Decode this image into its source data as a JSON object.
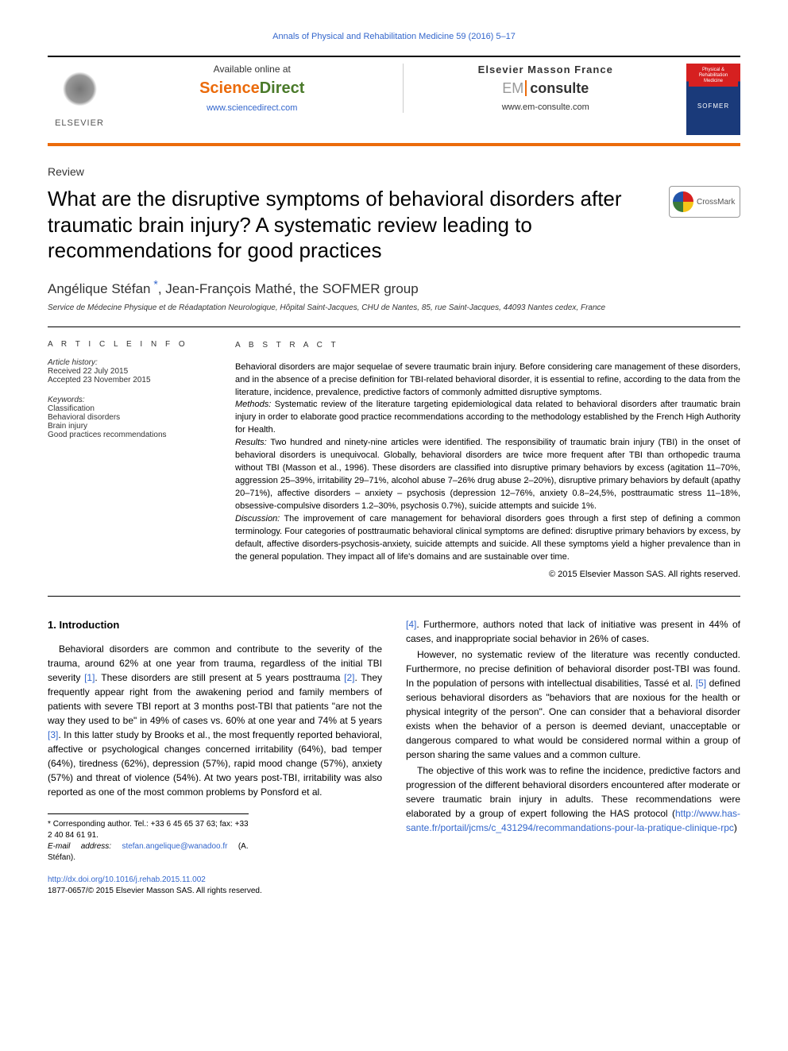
{
  "journal_ref": "Annals of Physical and Rehabilitation Medicine 59 (2016) 5–17",
  "banner": {
    "elsevier": "ELSEVIER",
    "available": "Available online at",
    "sd_science": "Science",
    "sd_direct": "Direct",
    "sd_url": "www.sciencedirect.com",
    "em_header": "Elsevier Masson France",
    "em_em": "EM",
    "em_consulte": "consulte",
    "em_url": "www.em-consulte.com",
    "cover_top": "Physical & Rehabilitation Medicine",
    "cover_bottom": "SOFMER"
  },
  "article_type": "Review",
  "title": "What are the disruptive symptoms of behavioral disorders after traumatic brain injury? A systematic review leading to recommendations for good practices",
  "crossmark": "CrossMark",
  "authors": "Angélique Stéfan *, Jean-François Mathé, the SOFMER group",
  "affiliation": "Service de Médecine Physique et de Réadaptation Neurologique, Hôpital Saint-Jacques, CHU de Nantes, 85, rue Saint-Jacques, 44093 Nantes cedex, France",
  "info": {
    "heading": "A R T I C L E  I N F O",
    "history_label": "Article history:",
    "received": "Received 22 July 2015",
    "accepted": "Accepted 23 November 2015",
    "keywords_label": "Keywords:",
    "keywords": [
      "Classification",
      "Behavioral disorders",
      "Brain injury",
      "Good practices recommendations"
    ]
  },
  "abstract": {
    "heading": "A B S T R A C T",
    "intro": "Behavioral disorders are major sequelae of severe traumatic brain injury. Before considering care management of these disorders, and in the absence of a precise definition for TBI-related behavioral disorder, it is essential to refine, according to the data from the literature, incidence, prevalence, predictive factors of commonly admitted disruptive symptoms.",
    "methods_label": "Methods:",
    "methods": " Systematic review of the literature targeting epidemiological data related to behavioral disorders after traumatic brain injury in order to elaborate good practice recommendations according to the methodology established by the French High Authority for Health.",
    "results_label": "Results:",
    "results": " Two hundred and ninety-nine articles were identified. The responsibility of traumatic brain injury (TBI) in the onset of behavioral disorders is unequivocal. Globally, behavioral disorders are twice more frequent after TBI than orthopedic trauma without TBI (Masson et al., 1996). These disorders are classified into disruptive primary behaviors by excess (agitation 11–70%, aggression 25–39%, irritability 29–71%, alcohol abuse 7–26% drug abuse 2–20%), disruptive primary behaviors by default (apathy 20–71%), affective disorders – anxiety – psychosis (depression 12–76%, anxiety 0.8–24,5%, posttraumatic stress 11–18%, obsessive-compulsive disorders 1.2–30%, psychosis 0.7%), suicide attempts and suicide 1%.",
    "discussion_label": "Discussion:",
    "discussion": " The improvement of care management for behavioral disorders goes through a first step of defining a common terminology. Four categories of posttraumatic behavioral clinical symptoms are defined: disruptive primary behaviors by excess, by default, affective disorders-psychosis-anxiety, suicide attempts and suicide. All these symptoms yield a higher prevalence than in the general population. They impact all of life's domains and are sustainable over time.",
    "copyright": "© 2015 Elsevier Masson SAS. All rights reserved."
  },
  "body": {
    "section_heading": "1. Introduction",
    "col1_p1a": "Behavioral disorders are common and contribute to the severity of the trauma, around 62% at one year from trauma, regardless of the initial TBI severity ",
    "col1_ref1": "[1]",
    "col1_p1b": ". These disorders are still present at 5 years posttrauma ",
    "col1_ref2": "[2]",
    "col1_p1c": ". They frequently appear right from the awakening period and family members of patients with severe TBI report at 3 months post-TBI that patients \"are not the way they used to be\" in 49% of cases vs. 60% at one year and 74% at 5 years ",
    "col1_ref3": "[3]",
    "col1_p1d": ". In this latter study by Brooks et al., the most frequently reported behavioral, affective or psychological changes concerned irritability (64%), bad temper (64%), tiredness (62%), depression (57%), rapid mood change (57%), anxiety (57%) and threat of violence (54%). At two years post-TBI, irritability was also reported as one of the most common problems by Ponsford et al.",
    "col2_ref4": "[4]",
    "col2_p1": ". Furthermore, authors noted that lack of initiative was present in 44% of cases, and inappropriate social behavior in 26% of cases.",
    "col2_p2a": "However, no systematic review of the literature was recently conducted. Furthermore, no precise definition of behavioral disorder post-TBI was found. In the population of persons with intellectual disabilities, Tassé et al. ",
    "col2_ref5": "[5]",
    "col2_p2b": " defined serious behavioral disorders as \"behaviors that are noxious for the health or physical integrity of the person\". One can consider that a behavioral disorder exists when the behavior of a person is deemed deviant, unacceptable or dangerous compared to what would be considered normal within a group of person sharing the same values and a common culture.",
    "col2_p3a": "The objective of this work was to refine the incidence, predictive factors and progression of the different behavioral disorders encountered after moderate or severe traumatic brain injury in adults. These recommendations were elaborated by a group of expert following the HAS protocol (",
    "col2_url": "http://www.has-sante.fr/portail/jcms/c_431294/recommandations-pour-la-pratique-clinique-rpc",
    "col2_p3b": ")"
  },
  "footnote": {
    "corr": "* Corresponding author. Tel.: +33 6 45 65 37 63; fax: +33 2 40 84 61 91.",
    "email_label": "E-mail address:",
    "email": "stefan.angelique@wanadoo.fr",
    "email_attr": " (A. Stéfan)."
  },
  "footer": {
    "doi": "http://dx.doi.org/10.1016/j.rehab.2015.11.002",
    "issn_copy": "1877-0657/© 2015 Elsevier Masson SAS. All rights reserved."
  },
  "colors": {
    "link": "#3366cc",
    "orange": "#eb6b0b",
    "text": "#000000"
  }
}
